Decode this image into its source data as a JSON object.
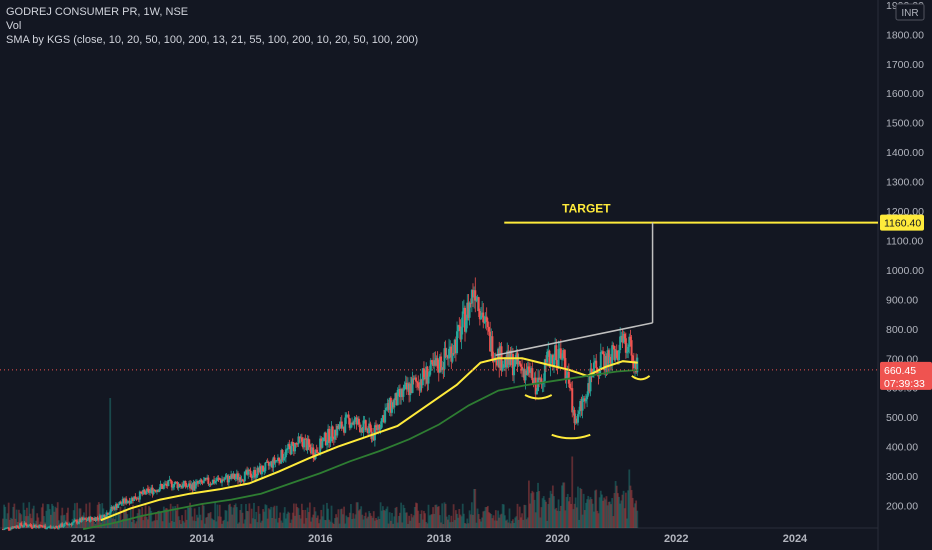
{
  "legend": {
    "symbol": "GODREJ CONSUMER PR, 1W, NSE",
    "volume": "Vol",
    "indicator": "SMA by KGS (close, 10, 20, 50, 100, 200, 13, 21, 55, 100, 200, 10, 20, 50, 100, 200)"
  },
  "currency": "INR",
  "annotations": {
    "target_label": "TARGET",
    "target_price": "1160.40"
  },
  "last_price": {
    "value": "660.45",
    "countdown": "07:39:33"
  },
  "colors": {
    "background": "#131722",
    "up": "#26a69a",
    "down": "#ef5350",
    "sma_fast": "#ffeb3b",
    "sma_slow": "#2e7d32",
    "annotation": "#ffeb3b",
    "trendline": "#c0c0c0",
    "axis_text": "#b2b5be"
  },
  "chart_data": {
    "type": "candlestick",
    "title": "GODREJ CONSUMER PR, 1W, NSE",
    "xlabel": "",
    "ylabel": "",
    "x_ticks": [
      "2012",
      "2014",
      "2016",
      "2018",
      "2020",
      "2022",
      "2024"
    ],
    "y_ticks": [
      "200.00",
      "300.00",
      "400.00",
      "500.00",
      "600.00",
      "700.00",
      "800.00",
      "900.00",
      "1000.00",
      "1100.00",
      "1200.00",
      "1300.00",
      "1400.00",
      "1500.00",
      "1600.00",
      "1700.00",
      "1800.00",
      "1900.00"
    ],
    "x_range": [
      2010.6,
      2025.4
    ],
    "y_range": [
      180,
      1900
    ],
    "price_series": [
      [
        2010.65,
        120
      ],
      [
        2011.0,
        135
      ],
      [
        2011.5,
        125
      ],
      [
        2011.8,
        140
      ],
      [
        2012.0,
        150
      ],
      [
        2012.3,
        160
      ],
      [
        2012.6,
        205
      ],
      [
        2012.9,
        230
      ],
      [
        2013.2,
        255
      ],
      [
        2013.5,
        275
      ],
      [
        2013.8,
        265
      ],
      [
        2014.1,
        280
      ],
      [
        2014.4,
        290
      ],
      [
        2014.7,
        300
      ],
      [
        2014.9,
        310
      ],
      [
        2015.1,
        330
      ],
      [
        2015.3,
        360
      ],
      [
        2015.5,
        395
      ],
      [
        2015.7,
        420
      ],
      [
        2015.9,
        380
      ],
      [
        2016.1,
        430
      ],
      [
        2016.3,
        460
      ],
      [
        2016.5,
        490
      ],
      [
        2016.7,
        470
      ],
      [
        2016.9,
        440
      ],
      [
        2017.1,
        520
      ],
      [
        2017.3,
        560
      ],
      [
        2017.5,
        600
      ],
      [
        2017.7,
        630
      ],
      [
        2017.9,
        660
      ],
      [
        2018.1,
        700
      ],
      [
        2018.3,
        760
      ],
      [
        2018.5,
        870
      ],
      [
        2018.6,
        950
      ],
      [
        2018.72,
        860
      ],
      [
        2018.85,
        760
      ],
      [
        2018.95,
        720
      ],
      [
        2019.1,
        690
      ],
      [
        2019.3,
        680
      ],
      [
        2019.5,
        650
      ],
      [
        2019.65,
        600
      ],
      [
        2019.8,
        680
      ],
      [
        2019.95,
        720
      ],
      [
        2020.1,
        700
      ],
      [
        2020.2,
        600
      ],
      [
        2020.3,
        480
      ],
      [
        2020.4,
        540
      ],
      [
        2020.55,
        630
      ],
      [
        2020.7,
        680
      ],
      [
        2020.85,
        700
      ],
      [
        2021.0,
        720
      ],
      [
        2021.15,
        760
      ],
      [
        2021.25,
        720
      ],
      [
        2021.35,
        660
      ]
    ],
    "series": [
      {
        "name": "",
        "type": "line",
        "points": [
          [
            2012.3,
            150
          ],
          [
            2012.8,
            190
          ],
          [
            2013.3,
            220
          ],
          [
            2013.8,
            240
          ],
          [
            2014.3,
            255
          ],
          [
            2014.8,
            275
          ],
          [
            2015.3,
            315
          ],
          [
            2015.8,
            360
          ],
          [
            2016.3,
            400
          ],
          [
            2016.8,
            435
          ],
          [
            2017.3,
            470
          ],
          [
            2017.8,
            540
          ],
          [
            2018.3,
            610
          ],
          [
            2018.7,
            685
          ],
          [
            2019.0,
            700
          ],
          [
            2019.4,
            700
          ],
          [
            2019.8,
            680
          ],
          [
            2020.2,
            660
          ],
          [
            2020.5,
            640
          ],
          [
            2020.8,
            670
          ],
          [
            2021.1,
            690
          ],
          [
            2021.35,
            685
          ]
        ]
      },
      {
        "name": "",
        "type": "line",
        "points": [
          [
            2012.0,
            120
          ],
          [
            2012.5,
            140
          ],
          [
            2013.0,
            165
          ],
          [
            2013.5,
            185
          ],
          [
            2014.0,
            205
          ],
          [
            2014.5,
            220
          ],
          [
            2015.0,
            240
          ],
          [
            2015.5,
            275
          ],
          [
            2016.0,
            310
          ],
          [
            2016.5,
            350
          ],
          [
            2017.0,
            385
          ],
          [
            2017.5,
            425
          ],
          [
            2018.0,
            475
          ],
          [
            2018.5,
            540
          ],
          [
            2019.0,
            590
          ],
          [
            2019.5,
            610
          ],
          [
            2020.0,
            625
          ],
          [
            2020.5,
            640
          ],
          [
            2021.0,
            655
          ],
          [
            2021.35,
            660
          ]
        ]
      }
    ],
    "volume_spikes": [
      [
        2012.45,
        1.0
      ],
      [
        2020.1,
        0.35
      ],
      [
        2020.25,
        0.55
      ],
      [
        2020.4,
        0.3
      ],
      [
        2021.2,
        0.45
      ],
      [
        2018.6,
        0.3
      ]
    ],
    "annotations": {
      "target_line": {
        "x_start": 2019.1,
        "x_end": 2025.4,
        "y": 1160.4
      },
      "vertical_line": {
        "x": 2021.6,
        "y_start": 820,
        "y_end": 1160.4
      },
      "resistance_line": {
        "x_start": 2018.95,
        "x_end": 2021.6,
        "y_start": 710,
        "y_end": 820
      },
      "support_arcs": [
        {
          "x_start": 2019.45,
          "x_end": 2019.9,
          "y": 565
        },
        {
          "x_start": 2019.9,
          "x_end": 2020.55,
          "y": 430
        },
        {
          "x_start": 2021.25,
          "x_end": 2021.55,
          "y": 630
        }
      ],
      "last_price_line": 660.45
    }
  }
}
